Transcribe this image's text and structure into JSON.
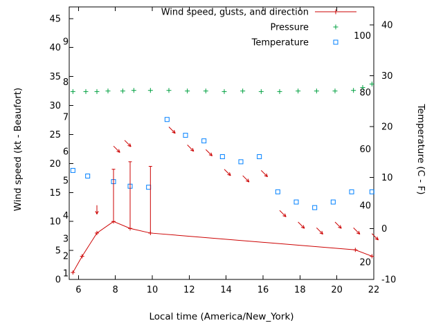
{
  "chart_data": {
    "type": "line",
    "title": "",
    "xlabel": "Local time (America/New_York)",
    "ylabel_left": "Wind speed (kt - Beaufort)",
    "ylabel_right": "Temperature (C - F)",
    "grid": false,
    "legend_position": "top-right-inside",
    "x_range": [
      5.5,
      22.0
    ],
    "x_ticks": [
      6,
      8,
      10,
      12,
      14,
      16,
      18,
      20,
      22
    ],
    "y_left_range": [
      0,
      47
    ],
    "y_left_ticks": [
      0,
      5,
      10,
      15,
      20,
      25,
      30,
      35,
      40,
      45
    ],
    "beaufort_scale_labels": [
      {
        "label": "1",
        "kt": 1
      },
      {
        "label": "2",
        "kt": 4
      },
      {
        "label": "3",
        "kt": 7
      },
      {
        "label": "4",
        "kt": 11
      },
      {
        "label": "5",
        "kt": 17
      },
      {
        "label": "6",
        "kt": 22
      },
      {
        "label": "7",
        "kt": 28
      },
      {
        "label": "8",
        "kt": 34
      },
      {
        "label": "9",
        "kt": 41
      }
    ],
    "y_right_range": [
      -10,
      43.5
    ],
    "y_right_ticks": [
      -10,
      0,
      10,
      20,
      30,
      40
    ],
    "fahrenheit_scale_labels": [
      {
        "label": "20",
        "f": 20
      },
      {
        "label": "40",
        "f": 40
      },
      {
        "label": "60",
        "f": 60
      },
      {
        "label": "80",
        "f": 80
      },
      {
        "label": "100",
        "f": 100
      }
    ],
    "legend": [
      {
        "label": "Wind speed, gusts, and direction",
        "color": "#cc0000",
        "marker": "line-plus"
      },
      {
        "label": "Pressure",
        "color": "#00a040",
        "marker": "plus"
      },
      {
        "label": "Temperature",
        "color": "#0080ff",
        "marker": "open-square"
      }
    ],
    "series": {
      "wind_speed": {
        "axis": "left",
        "unit": "kt",
        "color": "#cc0000",
        "style": "line-plus",
        "points": [
          [
            5.7,
            1.2
          ],
          [
            6.2,
            4.0
          ],
          [
            7.0,
            8.0
          ],
          [
            7.9,
            10.0
          ],
          [
            8.8,
            8.8
          ],
          [
            9.9,
            8.0
          ],
          [
            21.0,
            5.1
          ],
          [
            21.9,
            4.0
          ]
        ]
      },
      "wind_gusts": {
        "axis": "left",
        "unit": "kt",
        "color": "#cc0000",
        "style": "vertical-bar",
        "bars": [
          [
            7.9,
            10.0,
            19.0
          ],
          [
            8.8,
            8.8,
            20.3
          ],
          [
            9.9,
            8.0,
            19.5
          ]
        ]
      },
      "wind_direction": {
        "axis": "left",
        "unit": "kt-position, deg-heading",
        "color": "#cc0000",
        "style": "arrow",
        "arrows": [
          [
            7.0,
            12.8,
            180
          ],
          [
            7.9,
            23.0,
            135
          ],
          [
            8.5,
            24.0,
            135
          ],
          [
            10.9,
            26.3,
            135
          ],
          [
            11.9,
            23.2,
            135
          ],
          [
            12.9,
            22.4,
            135
          ],
          [
            13.9,
            19.0,
            135
          ],
          [
            14.9,
            17.9,
            135
          ],
          [
            15.9,
            18.8,
            135
          ],
          [
            16.9,
            11.9,
            135
          ],
          [
            17.9,
            9.9,
            135
          ],
          [
            18.9,
            8.9,
            135
          ],
          [
            19.9,
            9.9,
            135
          ],
          [
            20.9,
            8.9,
            135
          ],
          [
            21.9,
            7.9,
            135
          ]
        ]
      },
      "pressure": {
        "axis": "left",
        "color": "#00a040",
        "style": "plus",
        "points": [
          [
            5.7,
            32.4
          ],
          [
            6.4,
            32.4
          ],
          [
            7.0,
            32.4
          ],
          [
            7.6,
            32.5
          ],
          [
            8.4,
            32.5
          ],
          [
            9.0,
            32.6
          ],
          [
            9.9,
            32.6
          ],
          [
            10.9,
            32.6
          ],
          [
            11.9,
            32.5
          ],
          [
            12.9,
            32.5
          ],
          [
            13.9,
            32.4
          ],
          [
            14.9,
            32.5
          ],
          [
            15.9,
            32.4
          ],
          [
            16.9,
            32.4
          ],
          [
            17.9,
            32.5
          ],
          [
            18.9,
            32.5
          ],
          [
            19.9,
            32.5
          ],
          [
            20.9,
            32.6
          ],
          [
            21.4,
            33.1
          ],
          [
            21.9,
            33.7
          ]
        ]
      },
      "temperature": {
        "axis": "right",
        "unit": "C",
        "color": "#0080ff",
        "style": "open-square",
        "points": [
          [
            5.7,
            11.4
          ],
          [
            6.5,
            10.3
          ],
          [
            7.9,
            9.2
          ],
          [
            8.8,
            8.3
          ],
          [
            9.8,
            8.1
          ],
          [
            10.8,
            21.4
          ],
          [
            11.8,
            18.3
          ],
          [
            12.8,
            17.2
          ],
          [
            13.8,
            14.1
          ],
          [
            14.8,
            13.1
          ],
          [
            15.8,
            14.1
          ],
          [
            16.8,
            7.2
          ],
          [
            17.8,
            5.2
          ],
          [
            18.8,
            4.1
          ],
          [
            19.8,
            5.2
          ],
          [
            20.8,
            7.2
          ],
          [
            21.9,
            7.2
          ]
        ]
      }
    }
  }
}
